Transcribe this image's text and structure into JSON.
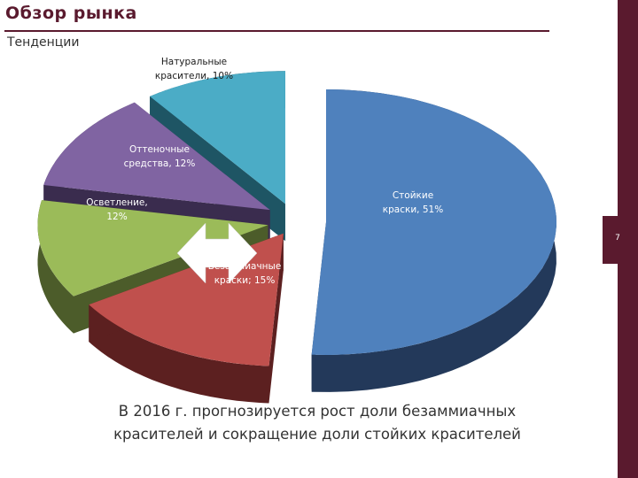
{
  "slide": {
    "title": "Обзор рынка",
    "subtitle": "Тенденции",
    "page_number": "7",
    "caption": "В 2016 г. прогнозируется рост доли безаммиачных красителей и сокращение доли стойких красителей"
  },
  "colors": {
    "accent": "#5a1a2e"
  },
  "icons": {
    "arrow": "double-arrow-icon"
  },
  "chart_data": {
    "type": "pie",
    "slices": [
      {
        "label": "Стойкие краски, 51%",
        "value": 51,
        "color": "#4f81bd",
        "side": "#23395a",
        "text_color": "#ffffff"
      },
      {
        "label": "Безаммиачные краски; 15%",
        "value": 15,
        "color": "#c0504d",
        "side": "#5c2020",
        "text_color": "#ffffff"
      },
      {
        "label": "Осветление, 12%",
        "value": 12,
        "color": "#9bbb59",
        "side": "#4c5c2a",
        "text_color": "#ffffff"
      },
      {
        "label": "Оттеночные средства, 12%",
        "value": 12,
        "color": "#8064a2",
        "side": "#3a2c4e",
        "text_color": "#ffffff"
      },
      {
        "label": "Натуральные красители, 10%",
        "value": 10,
        "color": "#4bacc6",
        "side": "#1e5564",
        "text_color": "#1a1a1a"
      }
    ]
  }
}
